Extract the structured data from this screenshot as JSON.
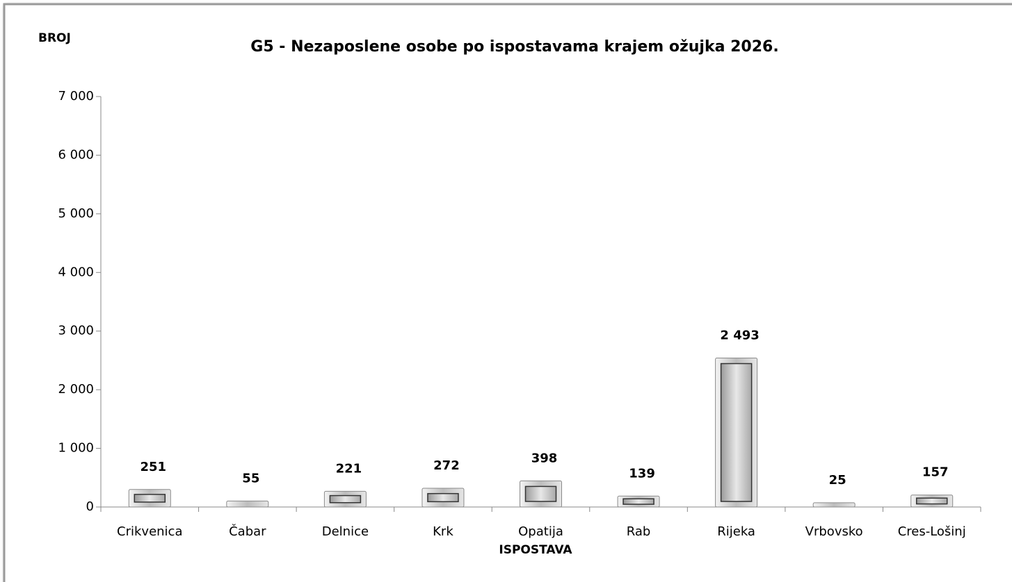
{
  "chart_data": {
    "type": "bar",
    "title": "G5 - Nezaposlene osobe po ispostavama krajem ožujka 2026.",
    "y_label": "BROJ",
    "x_label": "ISPOSTAVA",
    "categories": [
      "Crikvenica",
      "Čabar",
      "Delnice",
      "Krk",
      "Opatija",
      "Rab",
      "Rijeka",
      "Vrbovsko",
      "Cres-Lošinj"
    ],
    "values": [
      251,
      55,
      221,
      272,
      398,
      139,
      2493,
      25,
      157
    ],
    "value_labels": [
      "251",
      "55",
      "221",
      "272",
      "398",
      "139",
      "2 493",
      "25",
      "157"
    ],
    "color": "#c8c8c8",
    "ylim": [
      0,
      7000
    ],
    "yticks": [
      0,
      {
        "value": 1000,
        "label": "1 000"
      },
      {
        "value": 2000,
        "label": "2 000"
      },
      {
        "value": 3000,
        "label": "3 000"
      },
      {
        "value": 4000,
        "label": "4 000"
      },
      {
        "value": 5000,
        "label": "5 000"
      },
      {
        "value": 6000,
        "label": "6 000"
      },
      {
        "value": 7000,
        "label": "7 000"
      }
    ],
    "grid": false
  }
}
